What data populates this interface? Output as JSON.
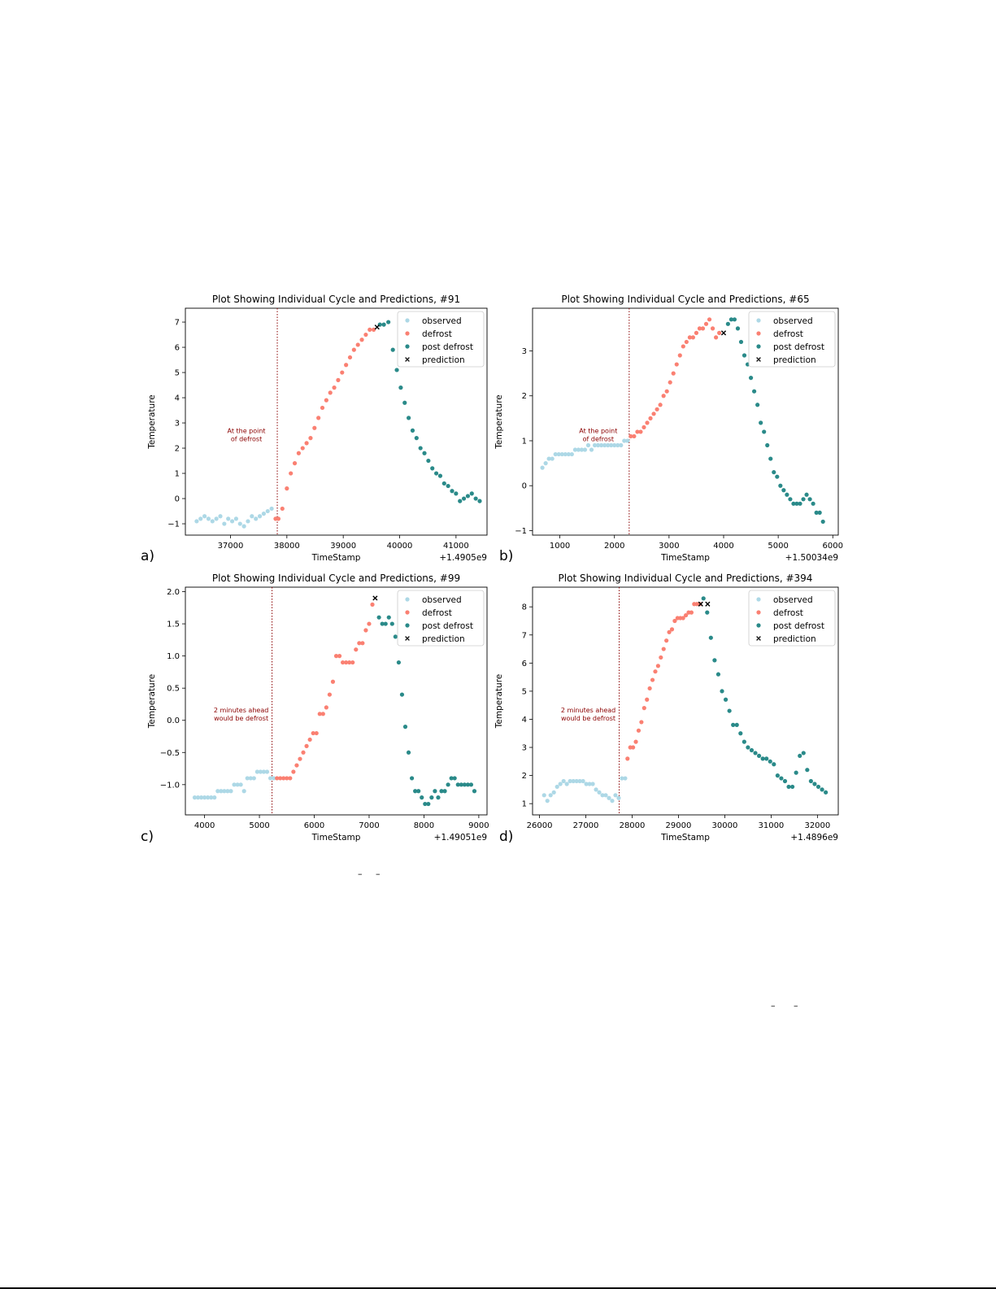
{
  "panel_labels": [
    "a)",
    "b)",
    "c)",
    "d)"
  ],
  "stray_marks": [
    "–",
    "–"
  ],
  "colors": {
    "observed": "#add8e6",
    "defrost": "#fa8072",
    "post_defrost": "#2a8a89",
    "prediction": "#000000",
    "annotation": "#8b0000",
    "vline": "#8b0000"
  },
  "chart_data": [
    {
      "type": "scatter",
      "title": "Plot Showing Individual Cycle and Predictions, #91",
      "xlabel": "TimeStamp",
      "ylabel": "Temperature",
      "offset_label": "+1.4905e9",
      "xlim": [
        36200,
        41550
      ],
      "ylim": [
        -1.45,
        7.55
      ],
      "xticks": [
        37000,
        38000,
        39000,
        40000,
        41000
      ],
      "yticks": [
        -1,
        0,
        1,
        2,
        3,
        4,
        5,
        6,
        7
      ],
      "ytick_labels": [
        "−1",
        "0",
        "1",
        "2",
        "3",
        "4",
        "5",
        "6",
        "7"
      ],
      "vline_x": 37830,
      "annotation": [
        "At the point",
        "of defrost"
      ],
      "legend": [
        "observed",
        "defrost",
        "post defrost",
        "prediction"
      ],
      "legend_position": "top-right",
      "series": [
        {
          "name": "observed",
          "x": [
            36400,
            36470,
            36540,
            36610,
            36680,
            36750,
            36820,
            36890,
            36960,
            37030,
            37100,
            37170,
            37240,
            37310,
            37380,
            37450,
            37520,
            37590,
            37660,
            37730
          ],
          "y": [
            -0.9,
            -0.8,
            -0.7,
            -0.8,
            -0.9,
            -0.8,
            -0.7,
            -1.0,
            -0.8,
            -0.9,
            -0.8,
            -1.0,
            -1.1,
            -0.9,
            -0.7,
            -0.8,
            -0.7,
            -0.6,
            -0.5,
            -0.4
          ]
        },
        {
          "name": "defrost",
          "x": [
            37800,
            37850,
            37920,
            38000,
            38070,
            38140,
            38210,
            38280,
            38350,
            38420,
            38490,
            38560,
            38630,
            38700,
            38770,
            38840,
            38910,
            38980,
            39050,
            39120,
            39190,
            39260,
            39330,
            39400,
            39470,
            39540
          ],
          "y": [
            -0.8,
            -0.8,
            -0.4,
            0.4,
            1.0,
            1.4,
            1.8,
            2.0,
            2.2,
            2.4,
            2.8,
            3.2,
            3.6,
            3.9,
            4.2,
            4.4,
            4.7,
            5.0,
            5.3,
            5.6,
            5.9,
            6.1,
            6.3,
            6.5,
            6.7,
            6.7
          ]
        },
        {
          "name": "post defrost",
          "x": [
            39650,
            39720,
            39800,
            39880,
            39950,
            40020,
            40090,
            40160,
            40230,
            40300,
            40370,
            40440,
            40510,
            40580,
            40650,
            40720,
            40790,
            40860,
            40930,
            41000,
            41070,
            41140,
            41210,
            41280,
            41350,
            41420
          ],
          "y": [
            6.9,
            6.9,
            7.0,
            5.9,
            5.1,
            4.4,
            3.8,
            3.2,
            2.7,
            2.4,
            2.0,
            1.8,
            1.5,
            1.2,
            1.0,
            0.9,
            0.6,
            0.5,
            0.3,
            0.2,
            -0.1,
            0.0,
            0.1,
            0.2,
            0.0,
            -0.1
          ]
        },
        {
          "name": "prediction",
          "x": [
            39600
          ],
          "y": [
            6.8
          ]
        }
      ]
    },
    {
      "type": "scatter",
      "title": "Plot Showing Individual Cycle and Predictions, #65",
      "xlabel": "TimeStamp",
      "ylabel": "Temperature",
      "offset_label": "+1.50034e9",
      "xlim": [
        500,
        6100
      ],
      "ylim": [
        -1.1,
        3.95
      ],
      "xticks": [
        1000,
        2000,
        3000,
        4000,
        5000,
        6000
      ],
      "yticks": [
        -1,
        0,
        1,
        2,
        3
      ],
      "ytick_labels": [
        "−1",
        "0",
        "1",
        "2",
        "3"
      ],
      "vline_x": 2270,
      "annotation": [
        "At the point",
        "of defrost"
      ],
      "legend": [
        "observed",
        "defrost",
        "post defrost",
        "prediction"
      ],
      "legend_position": "top-right",
      "series": [
        {
          "name": "observed",
          "x": [
            680,
            740,
            800,
            860,
            920,
            980,
            1040,
            1100,
            1160,
            1220,
            1280,
            1340,
            1400,
            1460,
            1520,
            1580,
            1640,
            1700,
            1760,
            1820,
            1880,
            1940,
            2000,
            2060,
            2120,
            2180,
            2240
          ],
          "y": [
            0.4,
            0.5,
            0.6,
            0.6,
            0.7,
            0.7,
            0.7,
            0.7,
            0.7,
            0.7,
            0.8,
            0.8,
            0.8,
            0.8,
            0.9,
            0.8,
            0.9,
            0.9,
            0.9,
            0.9,
            0.9,
            0.9,
            0.9,
            0.9,
            0.9,
            1.0,
            1.0
          ]
        },
        {
          "name": "defrost",
          "x": [
            2300,
            2360,
            2420,
            2480,
            2540,
            2600,
            2660,
            2720,
            2780,
            2840,
            2900,
            2960,
            3020,
            3080,
            3140,
            3200,
            3260,
            3320,
            3380,
            3440,
            3500,
            3560,
            3620,
            3680,
            3740,
            3800,
            3860,
            3920
          ],
          "y": [
            1.1,
            1.1,
            1.2,
            1.2,
            1.3,
            1.4,
            1.5,
            1.6,
            1.7,
            1.8,
            2.0,
            2.1,
            2.3,
            2.5,
            2.7,
            2.9,
            3.1,
            3.2,
            3.3,
            3.3,
            3.4,
            3.5,
            3.5,
            3.6,
            3.7,
            3.5,
            3.3,
            3.4
          ]
        },
        {
          "name": "post defrost",
          "x": [
            4080,
            4140,
            4200,
            4260,
            4320,
            4380,
            4440,
            4500,
            4560,
            4620,
            4680,
            4740,
            4800,
            4860,
            4920,
            4980,
            5040,
            5100,
            5160,
            5220,
            5280,
            5340,
            5400,
            5460,
            5520,
            5580,
            5640,
            5700,
            5760,
            5820
          ],
          "y": [
            3.6,
            3.7,
            3.7,
            3.5,
            3.2,
            2.9,
            2.7,
            2.4,
            2.1,
            1.8,
            1.4,
            1.2,
            0.9,
            0.6,
            0.3,
            0.2,
            0.0,
            -0.1,
            -0.2,
            -0.3,
            -0.4,
            -0.4,
            -0.4,
            -0.3,
            -0.2,
            -0.3,
            -0.4,
            -0.6,
            -0.6,
            -0.8
          ]
        },
        {
          "name": "prediction",
          "x": [
            4000
          ],
          "y": [
            3.4
          ]
        }
      ]
    },
    {
      "type": "scatter",
      "title": "Plot Showing Individual Cycle and Predictions, #99",
      "xlabel": "TimeStamp",
      "ylabel": "Temperature",
      "offset_label": "+1.49051e9",
      "xlim": [
        3650,
        9150
      ],
      "ylim": [
        -1.47,
        2.07
      ],
      "xticks": [
        4000,
        5000,
        6000,
        7000,
        8000,
        9000
      ],
      "yticks": [
        -1.0,
        -0.5,
        0.0,
        0.5,
        1.0,
        1.5,
        2.0
      ],
      "ytick_labels": [
        "−1.0",
        "−0.5",
        "0.0",
        "0.5",
        "1.0",
        "1.5",
        "2.0"
      ],
      "vline_x": 5230,
      "annotation": [
        "2 minutes ahead",
        "would be defrost"
      ],
      "legend": [
        "observed",
        "defrost",
        "post defrost",
        "prediction"
      ],
      "legend_position": "top-right",
      "series": [
        {
          "name": "observed",
          "x": [
            3820,
            3880,
            3940,
            4000,
            4060,
            4120,
            4180,
            4240,
            4300,
            4360,
            4420,
            4480,
            4540,
            4600,
            4660,
            4720,
            4780,
            4840,
            4900,
            4960,
            5020,
            5080,
            5140,
            5200,
            5260
          ],
          "y": [
            -1.2,
            -1.2,
            -1.2,
            -1.2,
            -1.2,
            -1.2,
            -1.2,
            -1.1,
            -1.1,
            -1.1,
            -1.1,
            -1.1,
            -1.0,
            -1.0,
            -1.0,
            -1.1,
            -0.9,
            -0.9,
            -0.9,
            -0.8,
            -0.8,
            -0.8,
            -0.8,
            -0.9,
            -0.9
          ]
        },
        {
          "name": "defrost",
          "x": [
            5320,
            5380,
            5440,
            5500,
            5560,
            5620,
            5680,
            5740,
            5800,
            5860,
            5920,
            5980,
            6040,
            6100,
            6160,
            6220,
            6280,
            6340,
            6400,
            6460,
            6520,
            6580,
            6640,
            6700,
            6760,
            6820,
            6880,
            6940,
            7000,
            7060
          ],
          "y": [
            -0.9,
            -0.9,
            -0.9,
            -0.9,
            -0.9,
            -0.8,
            -0.7,
            -0.6,
            -0.5,
            -0.4,
            -0.3,
            -0.2,
            -0.2,
            0.1,
            0.1,
            0.2,
            0.4,
            0.6,
            1.0,
            1.0,
            0.9,
            0.9,
            0.9,
            0.9,
            1.1,
            1.2,
            1.2,
            1.4,
            1.5,
            1.8
          ]
        },
        {
          "name": "post defrost",
          "x": [
            7180,
            7240,
            7300,
            7360,
            7420,
            7480,
            7540,
            7600,
            7660,
            7720,
            7780,
            7840,
            7900,
            7960,
            8020,
            8080,
            8140,
            8200,
            8260,
            8320,
            8380,
            8440,
            8500,
            8560,
            8620,
            8680,
            8740,
            8800,
            8860,
            8920
          ],
          "y": [
            1.6,
            1.5,
            1.5,
            1.6,
            1.5,
            1.3,
            0.9,
            0.4,
            -0.1,
            -0.5,
            -0.9,
            -1.1,
            -1.1,
            -1.2,
            -1.3,
            -1.3,
            -1.2,
            -1.1,
            -1.2,
            -1.1,
            -1.1,
            -1.0,
            -0.9,
            -0.9,
            -1.0,
            -1.0,
            -1.0,
            -1.0,
            -1.0,
            -1.1
          ]
        },
        {
          "name": "prediction",
          "x": [
            7110
          ],
          "y": [
            1.9
          ]
        }
      ]
    },
    {
      "type": "scatter",
      "title": "Plot Showing Individual Cycle and Predictions, #394",
      "xlabel": "TimeStamp",
      "ylabel": "Temperature",
      "offset_label": "+1.4896e9",
      "xlim": [
        25850,
        32450
      ],
      "ylim": [
        0.6,
        8.7
      ],
      "xticks": [
        26000,
        27000,
        28000,
        29000,
        30000,
        31000,
        32000
      ],
      "yticks": [
        1,
        2,
        3,
        4,
        5,
        6,
        7,
        8
      ],
      "ytick_labels": [
        "1",
        "2",
        "3",
        "4",
        "5",
        "6",
        "7",
        "8"
      ],
      "vline_x": 27720,
      "annotation": [
        "2 minutes ahead",
        "would be defrost"
      ],
      "legend": [
        "observed",
        "defrost",
        "post defrost",
        "prediction"
      ],
      "legend_position": "top-right",
      "series": [
        {
          "name": "observed",
          "x": [
            26100,
            26170,
            26240,
            26310,
            26380,
            26450,
            26520,
            26590,
            26660,
            26730,
            26800,
            26870,
            26940,
            27010,
            27080,
            27150,
            27220,
            27290,
            27360,
            27430,
            27500,
            27570,
            27640,
            27710,
            27780,
            27850
          ],
          "y": [
            1.3,
            1.1,
            1.3,
            1.4,
            1.6,
            1.7,
            1.8,
            1.7,
            1.8,
            1.8,
            1.8,
            1.8,
            1.8,
            1.7,
            1.7,
            1.7,
            1.5,
            1.4,
            1.3,
            1.3,
            1.2,
            1.1,
            1.3,
            1.2,
            1.9,
            1.9
          ]
        },
        {
          "name": "defrost",
          "x": [
            27900,
            27960,
            28020,
            28080,
            28140,
            28200,
            28260,
            28320,
            28380,
            28440,
            28500,
            28560,
            28620,
            28680,
            28740,
            28800,
            28860,
            28920,
            28980,
            29040,
            29100,
            29160,
            29220,
            29280,
            29340,
            29400,
            29460
          ],
          "y": [
            2.6,
            3.0,
            3.0,
            3.2,
            3.6,
            3.9,
            4.4,
            4.7,
            5.1,
            5.4,
            5.7,
            5.9,
            6.2,
            6.5,
            6.8,
            7.1,
            7.2,
            7.5,
            7.6,
            7.6,
            7.6,
            7.7,
            7.8,
            7.8,
            8.1,
            8.1,
            8.1
          ]
        },
        {
          "name": "post defrost",
          "x": [
            29540,
            29620,
            29700,
            29780,
            29860,
            29940,
            30020,
            30100,
            30180,
            30260,
            30340,
            30420,
            30500,
            30580,
            30660,
            30740,
            30820,
            30900,
            30980,
            31060,
            31140,
            31220,
            31300,
            31380,
            31460,
            31540,
            31620,
            31700,
            31780,
            31860,
            31940,
            32020,
            32100,
            32180
          ],
          "y": [
            8.3,
            7.8,
            6.9,
            6.1,
            5.6,
            5.0,
            4.7,
            4.3,
            3.8,
            3.8,
            3.5,
            3.2,
            3.0,
            2.9,
            2.8,
            2.7,
            2.6,
            2.6,
            2.5,
            2.4,
            2.0,
            1.9,
            1.8,
            1.6,
            1.6,
            2.1,
            2.7,
            2.8,
            2.2,
            1.8,
            1.7,
            1.6,
            1.5,
            1.4
          ]
        },
        {
          "name": "prediction",
          "x": [
            29480,
            29630
          ],
          "y": [
            8.1,
            8.1
          ]
        }
      ]
    }
  ]
}
